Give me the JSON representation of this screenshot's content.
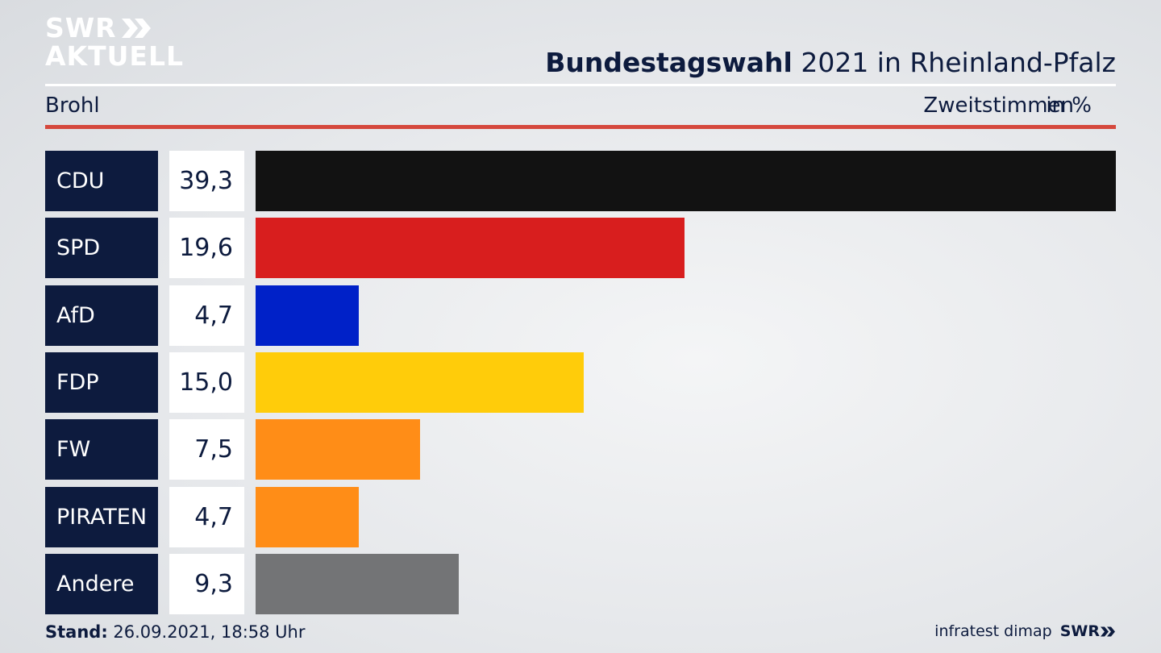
{
  "logo": {
    "line1": "SWR",
    "line2": "AKTUELL"
  },
  "header": {
    "title_bold": "Bundestagswahl",
    "title_rest": " 2021 in Rheinland-Pfalz",
    "region": "Brohl",
    "measure": "Zweitstimmen",
    "unit": "in %"
  },
  "chart_data": {
    "type": "bar",
    "orientation": "horizontal",
    "categories": [
      "CDU",
      "SPD",
      "AfD",
      "FDP",
      "FW",
      "PIRATEN",
      "Andere"
    ],
    "values": [
      39.3,
      19.6,
      4.7,
      15.0,
      7.5,
      4.7,
      9.3
    ],
    "labels": [
      "39,3",
      "19,6",
      "4,7",
      "15,0",
      "7,5",
      "4,7",
      "9,3"
    ],
    "colors": [
      "#121212",
      "#d81e1e",
      "#0021c8",
      "#ffcc0a",
      "#ff8d17",
      "#ff8d17",
      "#737476"
    ],
    "xlim": [
      0,
      39.3
    ]
  },
  "footer": {
    "stand_label": "Stand:",
    "stand_value": " 26.09.2021, 18:58 Uhr",
    "source": "infratest dimap",
    "brand": "SWR"
  }
}
